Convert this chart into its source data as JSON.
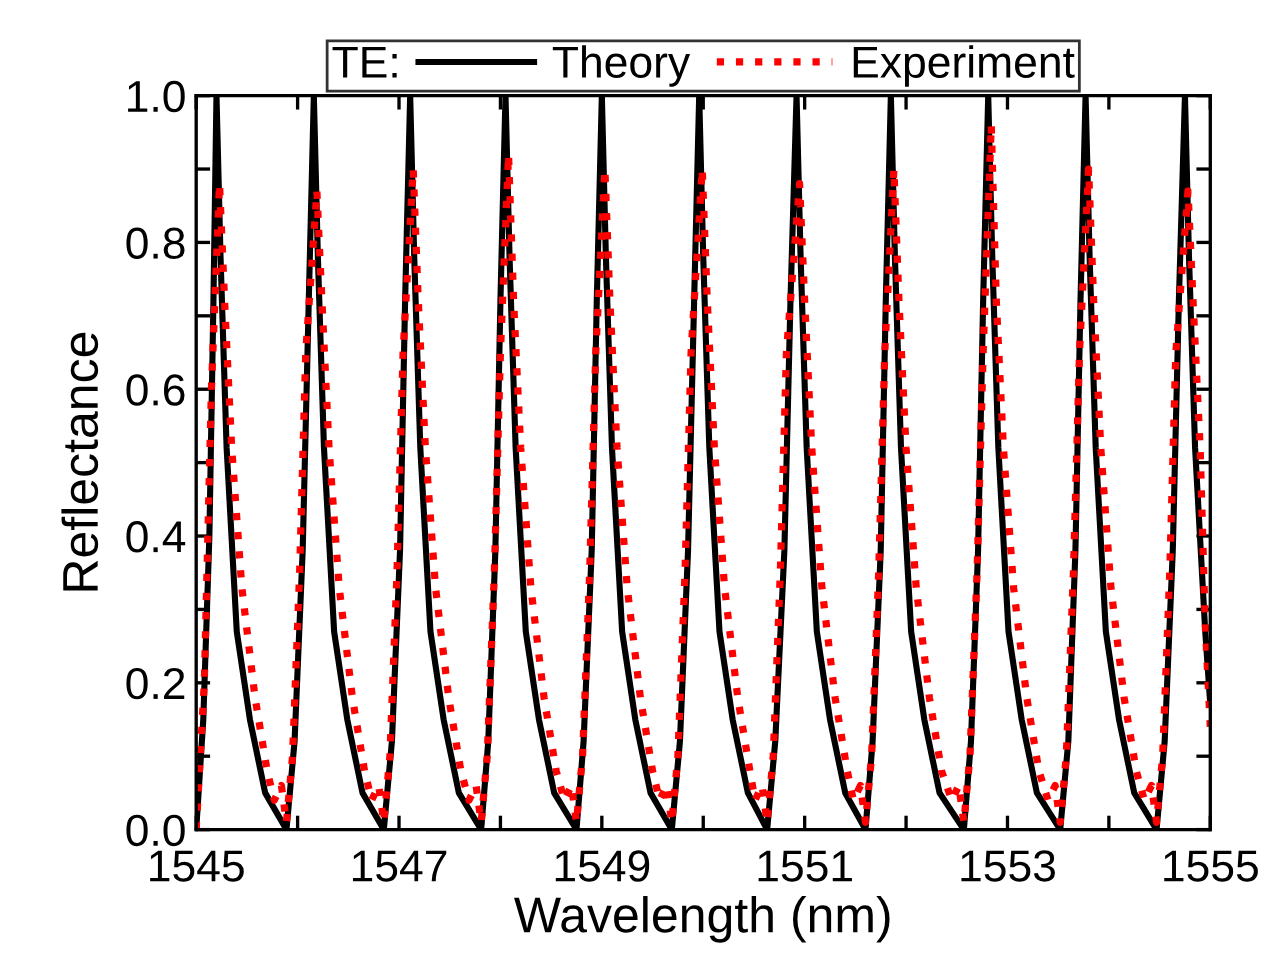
{
  "chart_data": {
    "type": "line",
    "xlabel": "Wavelength (nm)",
    "ylabel": "Reflectance",
    "legend_title": "TE:",
    "xlim": [
      1545,
      1555
    ],
    "ylim": [
      0,
      1.0
    ],
    "xticks": [
      1545,
      {
        "value": 1546,
        "label": null
      },
      1547,
      {
        "value": 1548,
        "label": null
      },
      1549,
      {
        "value": 1550,
        "label": null
      },
      1551,
      {
        "value": 1552,
        "label": null
      },
      1553,
      {
        "value": 1554,
        "label": null
      },
      1555
    ],
    "yticks": [
      {
        "value": 0,
        "label": "0.0"
      },
      {
        "value": 0.1,
        "label": null
      },
      {
        "value": 0.2,
        "label": "0.2"
      },
      {
        "value": 0.3,
        "label": null
      },
      {
        "value": 0.4,
        "label": "0.4"
      },
      {
        "value": 0.5,
        "label": null
      },
      {
        "value": 0.6,
        "label": "0.6"
      },
      {
        "value": 0.7,
        "label": null
      },
      {
        "value": 0.8,
        "label": "0.8"
      },
      {
        "value": 0.9,
        "label": null
      },
      {
        "value": 1.0,
        "label": "1.0"
      }
    ],
    "grid": false,
    "legend": "top",
    "series": [
      {
        "name": "Theory",
        "color": "#000000",
        "line_style": "solid",
        "x": [
          1545.0,
          1545.07,
          1545.13,
          1545.17,
          1545.2,
          1545.24,
          1545.3,
          1545.4,
          1545.53,
          1545.68,
          1545.89,
          1545.97,
          1546.05,
          1546.11,
          1546.16,
          1546.2,
          1546.26,
          1546.36,
          1546.49,
          1546.64,
          1546.85,
          1546.93,
          1547.01,
          1547.06,
          1547.11,
          1547.15,
          1547.21,
          1547.31,
          1547.44,
          1547.59,
          1547.81,
          1547.88,
          1547.95,
          1548.0,
          1548.05,
          1548.09,
          1548.15,
          1548.25,
          1548.38,
          1548.53,
          1548.75,
          1548.82,
          1548.9,
          1548.95,
          1549.0,
          1549.04,
          1549.1,
          1549.2,
          1549.33,
          1549.48,
          1549.69,
          1549.77,
          1549.85,
          1549.91,
          1549.96,
          1550.0,
          1550.06,
          1550.16,
          1550.29,
          1550.44,
          1550.63,
          1550.71,
          1550.8,
          1550.86,
          1550.92,
          1550.96,
          1551.02,
          1551.12,
          1551.25,
          1551.4,
          1551.6,
          1551.67,
          1551.75,
          1551.8,
          1551.85,
          1551.89,
          1551.95,
          1552.05,
          1552.18,
          1552.33,
          1552.57,
          1552.64,
          1552.71,
          1552.76,
          1552.81,
          1552.85,
          1552.91,
          1553.01,
          1553.14,
          1553.29,
          1553.52,
          1553.6,
          1553.67,
          1553.72,
          1553.77,
          1553.81,
          1553.87,
          1553.97,
          1554.1,
          1554.25,
          1554.47,
          1554.55,
          1554.63,
          1554.69,
          1554.75,
          1554.79,
          1554.85,
          1554.95,
          1555.0
        ],
        "values": [
          0.0,
          0.15,
          0.4,
          0.72,
          1.0,
          0.78,
          0.52,
          0.27,
          0.15,
          0.05,
          0.0,
          0.12,
          0.38,
          0.72,
          1.0,
          0.78,
          0.52,
          0.27,
          0.15,
          0.05,
          0.0,
          0.12,
          0.38,
          0.72,
          1.0,
          0.78,
          0.52,
          0.27,
          0.15,
          0.05,
          0.0,
          0.12,
          0.38,
          0.72,
          1.0,
          0.78,
          0.52,
          0.27,
          0.15,
          0.05,
          0.0,
          0.12,
          0.38,
          0.72,
          1.0,
          0.78,
          0.52,
          0.27,
          0.15,
          0.05,
          0.0,
          0.12,
          0.38,
          0.72,
          1.0,
          0.78,
          0.52,
          0.27,
          0.15,
          0.05,
          0.0,
          0.12,
          0.38,
          0.72,
          1.0,
          0.78,
          0.52,
          0.27,
          0.15,
          0.05,
          0.0,
          0.12,
          0.38,
          0.72,
          1.0,
          0.78,
          0.52,
          0.27,
          0.15,
          0.05,
          0.0,
          0.12,
          0.38,
          0.72,
          1.0,
          0.78,
          0.52,
          0.27,
          0.15,
          0.05,
          0.0,
          0.12,
          0.38,
          0.72,
          1.0,
          0.78,
          0.52,
          0.27,
          0.15,
          0.05,
          0.0,
          0.12,
          0.38,
          0.72,
          1.0,
          0.78,
          0.52,
          0.27,
          0.17
        ]
      },
      {
        "name": "Experiment",
        "color": "#ff0000",
        "line_style": "dotted",
        "x": [
          1545.0,
          1545.08,
          1545.15,
          1545.23,
          1545.28,
          1545.35,
          1545.45,
          1545.58,
          1545.7,
          1545.77,
          1545.84,
          1545.89,
          1545.95,
          1546.02,
          1546.08,
          1546.19,
          1546.24,
          1546.31,
          1546.41,
          1546.54,
          1546.66,
          1546.73,
          1546.8,
          1546.85,
          1546.91,
          1546.98,
          1547.04,
          1547.14,
          1547.19,
          1547.26,
          1547.36,
          1547.49,
          1547.61,
          1547.69,
          1547.76,
          1547.81,
          1547.87,
          1547.94,
          1548.0,
          1548.08,
          1548.13,
          1548.2,
          1548.3,
          1548.43,
          1548.55,
          1548.63,
          1548.7,
          1548.75,
          1548.81,
          1548.88,
          1548.94,
          1549.03,
          1549.08,
          1549.15,
          1549.25,
          1549.38,
          1549.5,
          1549.57,
          1549.64,
          1549.69,
          1549.75,
          1549.82,
          1549.88,
          1549.99,
          1550.04,
          1550.11,
          1550.21,
          1550.34,
          1550.46,
          1550.51,
          1550.58,
          1550.63,
          1550.69,
          1550.76,
          1550.82,
          1550.95,
          1551.0,
          1551.07,
          1551.17,
          1551.3,
          1551.42,
          1551.48,
          1551.55,
          1551.6,
          1551.66,
          1551.73,
          1551.79,
          1551.88,
          1551.93,
          1552.0,
          1552.1,
          1552.23,
          1552.35,
          1552.45,
          1552.52,
          1552.57,
          1552.63,
          1552.7,
          1552.76,
          1552.84,
          1552.89,
          1552.96,
          1553.06,
          1553.19,
          1553.31,
          1553.4,
          1553.47,
          1553.52,
          1553.58,
          1553.65,
          1553.71,
          1553.8,
          1553.85,
          1553.92,
          1554.02,
          1554.15,
          1554.27,
          1554.35,
          1554.42,
          1554.47,
          1554.53,
          1554.6,
          1554.66,
          1554.78,
          1554.83,
          1554.9,
          1554.95,
          1555.0
        ],
        "values": [
          0.0,
          0.2,
          0.6,
          0.88,
          0.72,
          0.52,
          0.33,
          0.18,
          0.08,
          0.04,
          0.06,
          0.01,
          0.1,
          0.35,
          0.65,
          0.87,
          0.72,
          0.52,
          0.33,
          0.18,
          0.08,
          0.04,
          0.06,
          0.01,
          0.1,
          0.35,
          0.65,
          0.9,
          0.72,
          0.52,
          0.33,
          0.18,
          0.08,
          0.04,
          0.06,
          0.01,
          0.1,
          0.35,
          0.65,
          0.92,
          0.72,
          0.52,
          0.33,
          0.18,
          0.08,
          0.04,
          0.06,
          0.01,
          0.1,
          0.35,
          0.65,
          0.9,
          0.72,
          0.52,
          0.33,
          0.18,
          0.08,
          0.04,
          0.06,
          0.01,
          0.1,
          0.35,
          0.65,
          0.9,
          0.72,
          0.52,
          0.33,
          0.18,
          0.08,
          0.04,
          0.06,
          0.01,
          0.1,
          0.35,
          0.65,
          0.88,
          0.72,
          0.52,
          0.33,
          0.18,
          0.08,
          0.04,
          0.06,
          0.01,
          0.1,
          0.35,
          0.65,
          0.9,
          0.72,
          0.52,
          0.33,
          0.18,
          0.08,
          0.04,
          0.06,
          0.01,
          0.1,
          0.35,
          0.65,
          0.96,
          0.72,
          0.52,
          0.33,
          0.18,
          0.08,
          0.04,
          0.06,
          0.01,
          0.1,
          0.35,
          0.65,
          0.9,
          0.72,
          0.52,
          0.33,
          0.18,
          0.08,
          0.04,
          0.06,
          0.01,
          0.1,
          0.35,
          0.65,
          0.87,
          0.72,
          0.52,
          0.28,
          0.14
        ]
      }
    ]
  }
}
